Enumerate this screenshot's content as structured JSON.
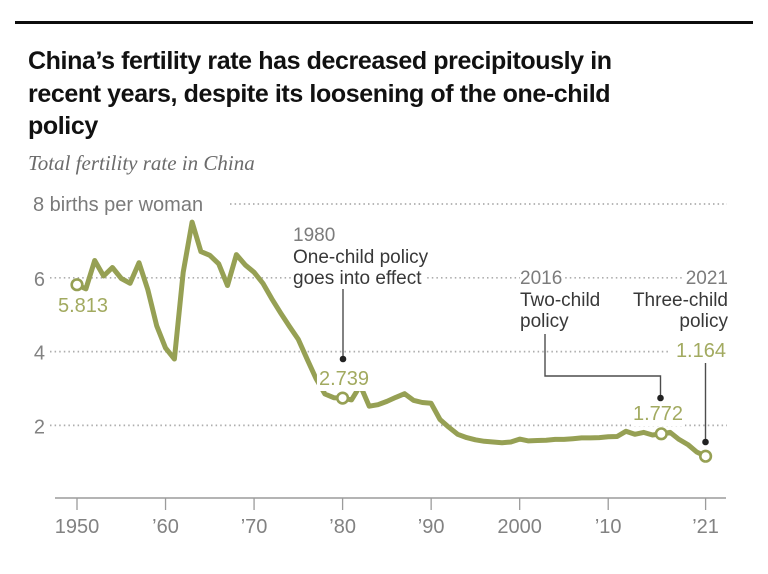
{
  "header": {
    "title_lines": [
      "China’s fertility rate has decreased precipitously in",
      "recent years, despite its loosening of the one-child",
      "policy"
    ],
    "subtitle": "Total fertility rate in China"
  },
  "chart": {
    "unit_label": "8 births per woman",
    "y_tick_labels": [
      "6",
      "4",
      "2"
    ],
    "y_tick_values": [
      6,
      4,
      2
    ],
    "x_tick_years": [
      1950,
      1960,
      1970,
      1980,
      1990,
      2000,
      2010,
      2021
    ],
    "x_tick_labels": [
      "1950",
      "’60",
      "’70",
      "’80",
      "’90",
      "2000",
      "’10",
      "’21"
    ],
    "annotations": {
      "y1950": {
        "value": "5.813"
      },
      "y1980": {
        "year": "1980",
        "lines": [
          "One-child policy",
          "goes into effect"
        ],
        "value": "2.739"
      },
      "y2016": {
        "year": "2016",
        "lines": [
          "Two-child",
          "policy"
        ],
        "value": "1.772"
      },
      "y2021": {
        "year": "2021",
        "lines": [
          "Three-child",
          "policy"
        ],
        "value": "1.164"
      }
    },
    "colors": {
      "line": "#96a054",
      "value_label": "#a2aa60",
      "year_label": "#7c7c7c",
      "annotation_text": "#383838",
      "grid_dot": "#adadad",
      "axis": "#9b9b9b",
      "tick_label": "#828282",
      "unit_label": "#7a7a7a",
      "leader": "#4d4d4d",
      "leader_dot": "#222222",
      "title": "#111111",
      "subtitle": "#6b6b6b",
      "rule": "#0d0d0d"
    }
  },
  "chart_data": {
    "type": "line",
    "title": "China’s fertility rate has decreased precipitously in recent years, despite its loosening of the one-child policy",
    "subtitle": "Total fertility rate in China",
    "series_name": "Total fertility rate",
    "ylabel": "births per woman",
    "ylim": [
      0,
      8
    ],
    "yticks": [
      8,
      6,
      4,
      2
    ],
    "xticks": [
      1950,
      1960,
      1970,
      1980,
      1990,
      2000,
      2010,
      2021
    ],
    "grid": "dotted-horizontal",
    "legend": "none",
    "x": [
      1950,
      1951,
      1952,
      1953,
      1954,
      1955,
      1956,
      1957,
      1958,
      1959,
      1960,
      1961,
      1962,
      1963,
      1964,
      1965,
      1966,
      1967,
      1968,
      1969,
      1970,
      1971,
      1972,
      1973,
      1974,
      1975,
      1976,
      1977,
      1978,
      1979,
      1980,
      1981,
      1982,
      1983,
      1984,
      1985,
      1986,
      1987,
      1988,
      1989,
      1990,
      1991,
      1992,
      1993,
      1994,
      1995,
      1996,
      1997,
      1998,
      1999,
      2000,
      2001,
      2002,
      2003,
      2004,
      2005,
      2006,
      2007,
      2008,
      2009,
      2010,
      2011,
      2012,
      2013,
      2014,
      2015,
      2016,
      2017,
      2018,
      2019,
      2020,
      2021
    ],
    "values": [
      5.813,
      5.7,
      6.47,
      6.05,
      6.28,
      5.98,
      5.85,
      6.41,
      5.68,
      4.7,
      4.1,
      3.8,
      6.15,
      7.51,
      6.71,
      6.61,
      6.38,
      5.79,
      6.63,
      6.35,
      6.15,
      5.85,
      5.43,
      5.05,
      4.68,
      4.33,
      3.79,
      3.27,
      2.85,
      2.75,
      2.739,
      2.69,
      3.08,
      2.52,
      2.56,
      2.65,
      2.76,
      2.86,
      2.68,
      2.62,
      2.6,
      2.16,
      1.95,
      1.76,
      1.67,
      1.61,
      1.57,
      1.55,
      1.53,
      1.55,
      1.63,
      1.58,
      1.59,
      1.6,
      1.62,
      1.62,
      1.64,
      1.66,
      1.66,
      1.67,
      1.69,
      1.7,
      1.84,
      1.76,
      1.81,
      1.74,
      1.772,
      1.81,
      1.62,
      1.48,
      1.28,
      1.164
    ],
    "markers": [
      {
        "x": 1950,
        "y": 5.813
      },
      {
        "x": 1980,
        "y": 2.739
      },
      {
        "x": 2016,
        "y": 1.772
      },
      {
        "x": 2021,
        "y": 1.164
      }
    ],
    "annotations": [
      {
        "year": 1980,
        "label": "One-child policy goes into effect"
      },
      {
        "year": 2016,
        "label": "Two-child policy"
      },
      {
        "year": 2021,
        "label": "Three-child policy"
      }
    ]
  }
}
